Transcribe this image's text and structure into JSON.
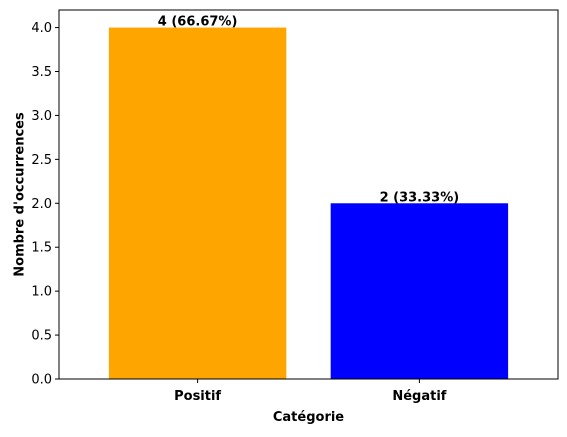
{
  "chart_data": {
    "type": "bar",
    "categories": [
      "Positif",
      "Négatif"
    ],
    "values": [
      4,
      2
    ],
    "colors": [
      "#ffa500",
      "#0000ff"
    ],
    "data_labels": [
      "4 (66.67%)",
      "2 (33.33%)"
    ],
    "xlabel": "Catégorie",
    "ylabel": "Nombre d'occurrences",
    "ylim": [
      0,
      4.2
    ],
    "yticks": [
      "0.0",
      "0.5",
      "1.0",
      "1.5",
      "2.0",
      "2.5",
      "3.0",
      "3.5",
      "4.0"
    ],
    "grid": false
  }
}
